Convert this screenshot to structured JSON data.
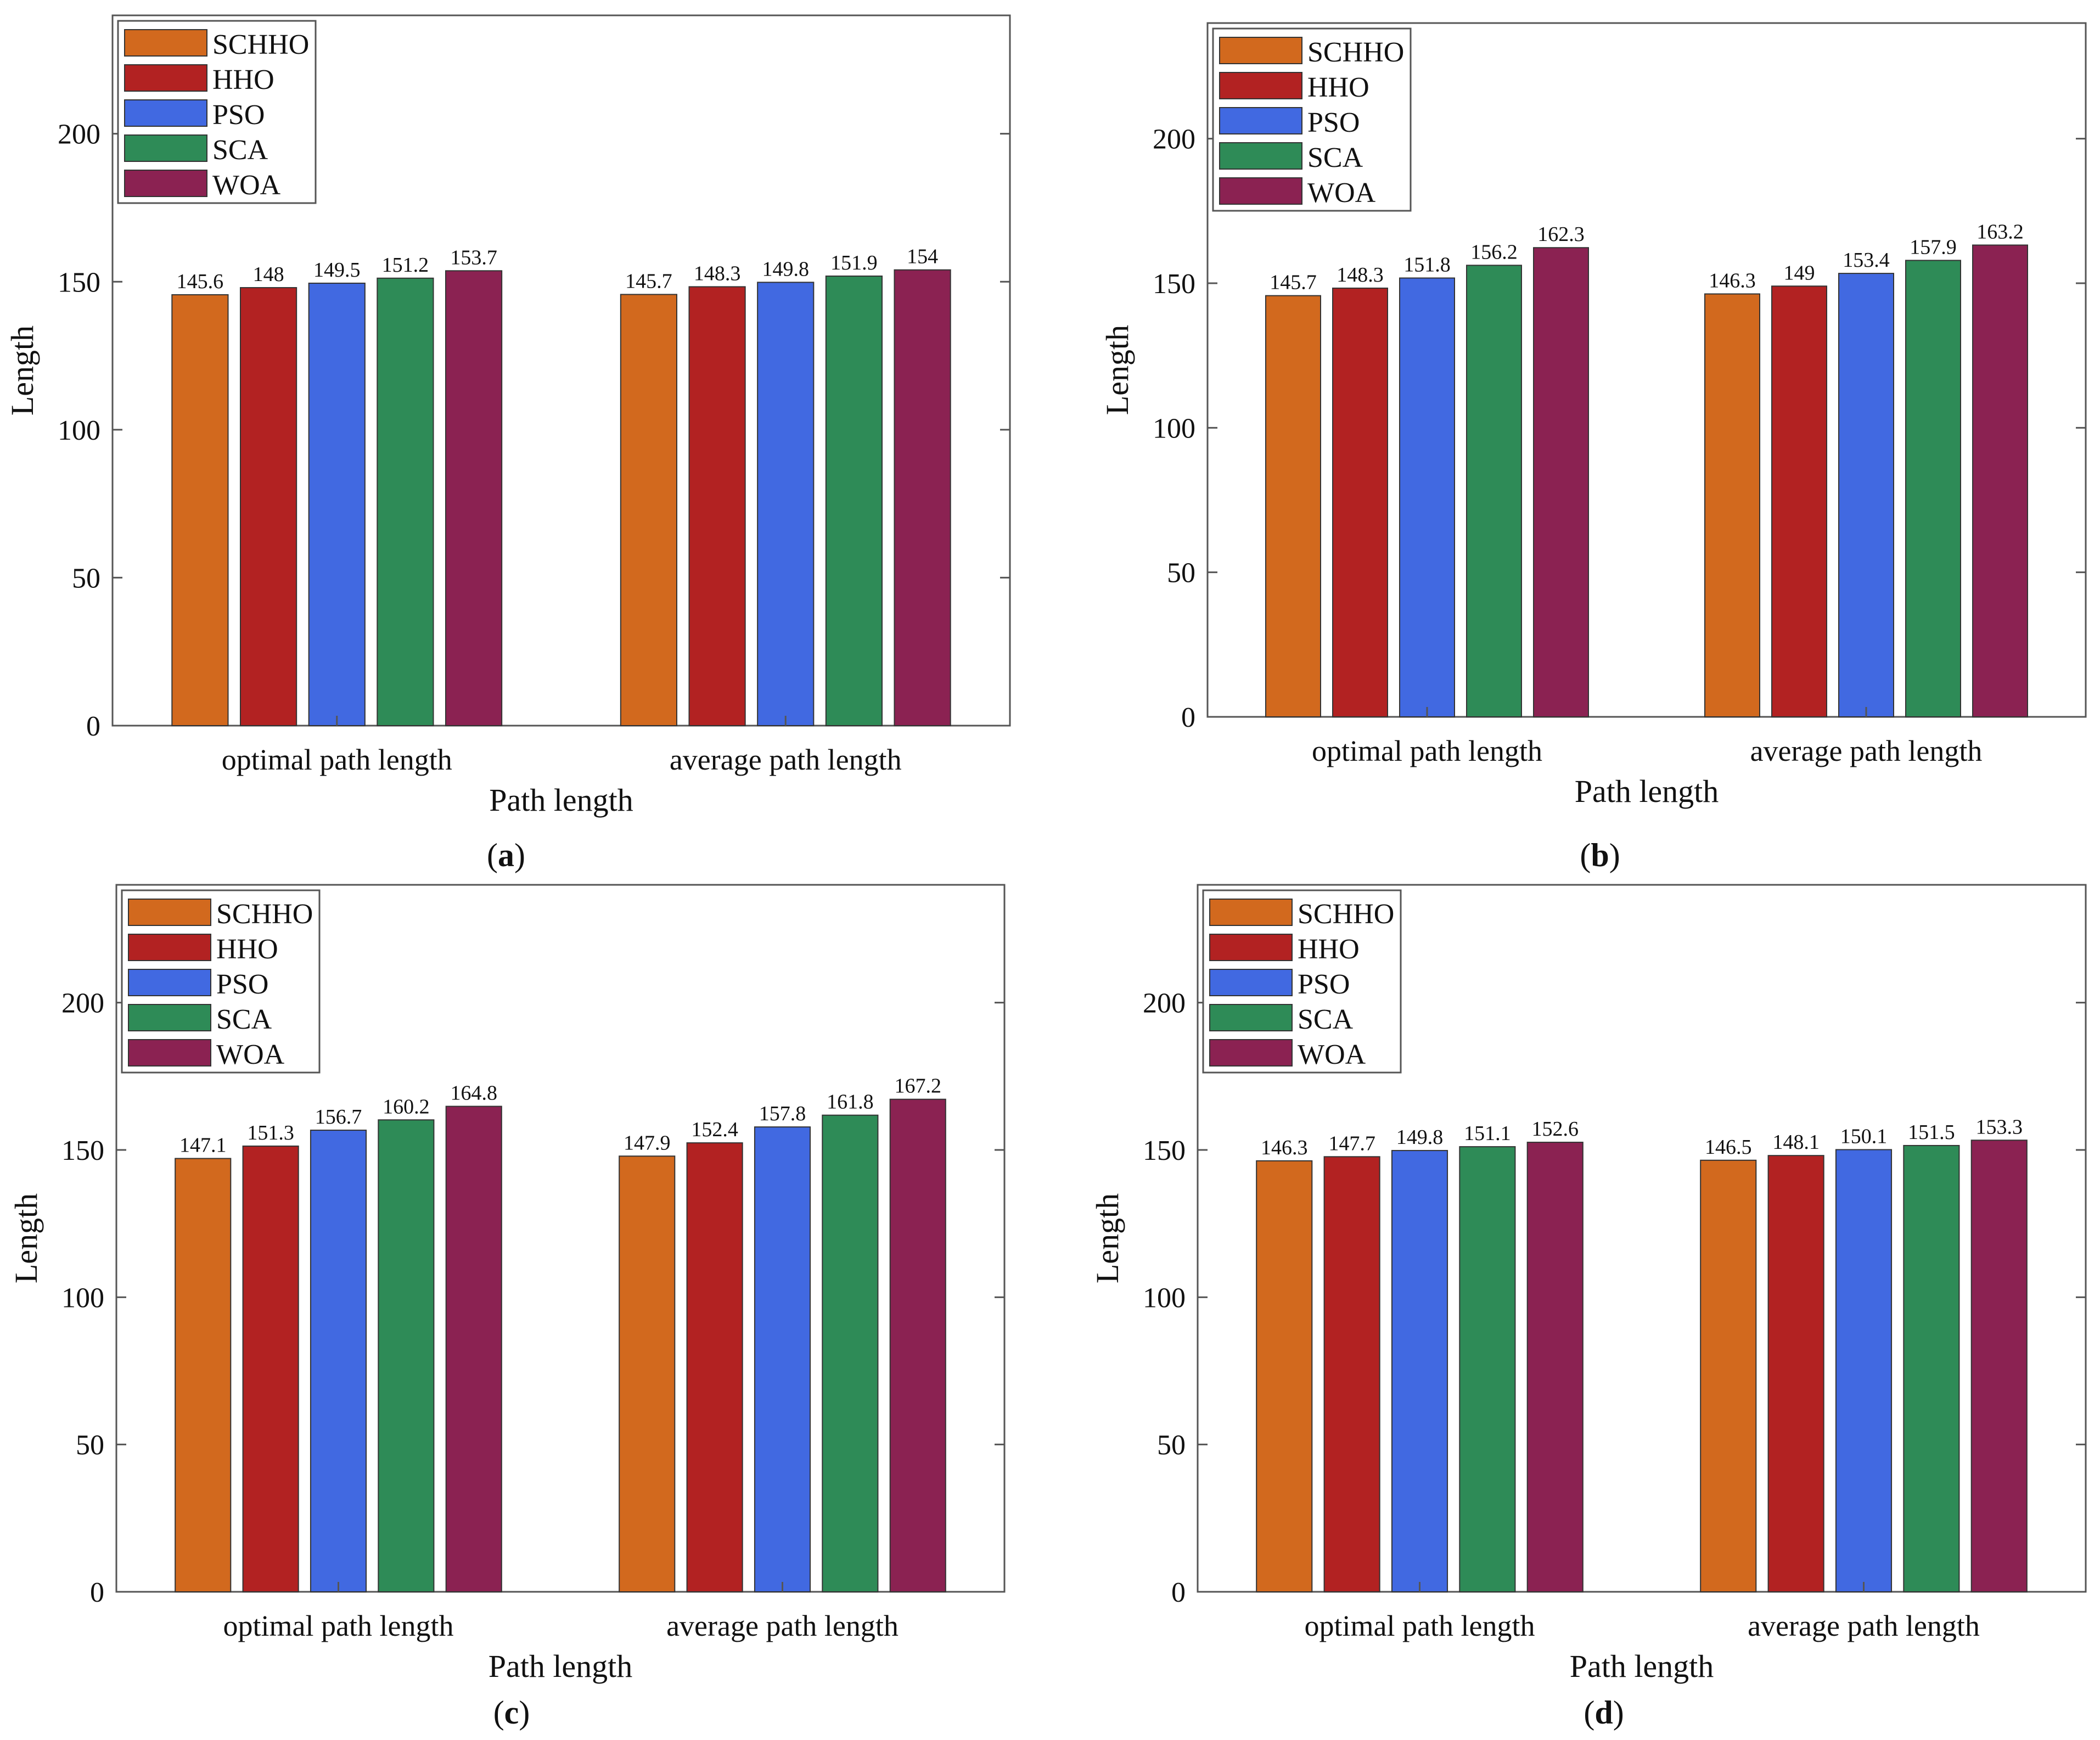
{
  "chart_data": [
    {
      "panel": "a",
      "caption": "(a)",
      "type": "bar",
      "categories": [
        "optimal path length",
        "average path length"
      ],
      "series": [
        {
          "name": "SCHHO",
          "values": [
            145.6,
            145.7
          ],
          "labels": [
            "145.6",
            "145.7"
          ]
        },
        {
          "name": "HHO",
          "values": [
            148,
            148.3
          ],
          "labels": [
            "148",
            "148.3"
          ]
        },
        {
          "name": "PSO",
          "values": [
            149.5,
            149.8
          ],
          "labels": [
            "149.5",
            "149.8"
          ]
        },
        {
          "name": "SCA",
          "values": [
            151.2,
            151.9
          ],
          "labels": [
            "151.2",
            "151.9"
          ]
        },
        {
          "name": "WOA",
          "values": [
            153.7,
            154
          ],
          "labels": [
            "153.7",
            "154"
          ]
        }
      ],
      "xlabel": "Path length",
      "ylabel": "Length",
      "ylim": [
        0,
        240
      ],
      "yticks": [
        "0",
        "50",
        "100",
        "150",
        "200"
      ],
      "legend_position": "top-left",
      "grid": false
    },
    {
      "panel": "b",
      "caption": "(b)",
      "type": "bar",
      "categories": [
        "optimal path length",
        "average path length"
      ],
      "series": [
        {
          "name": "SCHHO",
          "values": [
            145.7,
            146.3
          ],
          "labels": [
            "145.7",
            "146.3"
          ]
        },
        {
          "name": "HHO",
          "values": [
            148.3,
            149
          ],
          "labels": [
            "148.3",
            "149"
          ]
        },
        {
          "name": "PSO",
          "values": [
            151.8,
            153.4
          ],
          "labels": [
            "151.8",
            "153.4"
          ]
        },
        {
          "name": "SCA",
          "values": [
            156.2,
            157.9
          ],
          "labels": [
            "156.2",
            "157.9"
          ]
        },
        {
          "name": "WOA",
          "values": [
            162.3,
            163.2
          ],
          "labels": [
            "162.3",
            "163.2"
          ]
        }
      ],
      "xlabel": "Path length",
      "ylabel": "Length",
      "ylim": [
        0,
        240
      ],
      "yticks": [
        "0",
        "50",
        "100",
        "150",
        "200"
      ],
      "legend_position": "top-left",
      "grid": false
    },
    {
      "panel": "c",
      "caption": "(c)",
      "type": "bar",
      "categories": [
        "optimal path length",
        "average path length"
      ],
      "series": [
        {
          "name": "SCHHO",
          "values": [
            147.1,
            147.9
          ],
          "labels": [
            "147.1",
            "147.9"
          ]
        },
        {
          "name": "HHO",
          "values": [
            151.3,
            152.4
          ],
          "labels": [
            "151.3",
            "152.4"
          ]
        },
        {
          "name": "PSO",
          "values": [
            156.7,
            157.8
          ],
          "labels": [
            "156.7",
            "157.8"
          ]
        },
        {
          "name": "SCA",
          "values": [
            160.2,
            161.8
          ],
          "labels": [
            "160.2",
            "161.8"
          ]
        },
        {
          "name": "WOA",
          "values": [
            164.8,
            167.2
          ],
          "labels": [
            "164.8",
            "167.2"
          ]
        }
      ],
      "xlabel": "Path length",
      "ylabel": "Length",
      "ylim": [
        0,
        240
      ],
      "yticks": [
        "0",
        "50",
        "100",
        "150",
        "200"
      ],
      "legend_position": "top-left",
      "grid": false
    },
    {
      "panel": "d",
      "caption": "(d)",
      "type": "bar",
      "categories": [
        "optimal path length",
        "average path length"
      ],
      "series": [
        {
          "name": "SCHHO",
          "values": [
            146.3,
            146.5
          ],
          "labels": [
            "146.3",
            "146.5"
          ]
        },
        {
          "name": "HHO",
          "values": [
            147.7,
            148.1
          ],
          "labels": [
            "147.7",
            "148.1"
          ]
        },
        {
          "name": "PSO",
          "values": [
            149.8,
            150.1
          ],
          "labels": [
            "149.8",
            "150.1"
          ]
        },
        {
          "name": "SCA",
          "values": [
            151.1,
            151.5
          ],
          "labels": [
            "151.1",
            "151.5"
          ]
        },
        {
          "name": "WOA",
          "values": [
            152.6,
            153.3
          ],
          "labels": [
            "152.6",
            "153.3"
          ]
        }
      ],
      "xlabel": "Path length",
      "ylabel": "Length",
      "ylim": [
        0,
        240
      ],
      "yticks": [
        "0",
        "50",
        "100",
        "150",
        "200"
      ],
      "legend_position": "top-left",
      "grid": false
    }
  ],
  "series_colors": {
    "SCHHO": "#d2691e",
    "HHO": "#b22222",
    "PSO": "#4169e1",
    "SCA": "#2e8b57",
    "WOA": "#8b2252"
  }
}
